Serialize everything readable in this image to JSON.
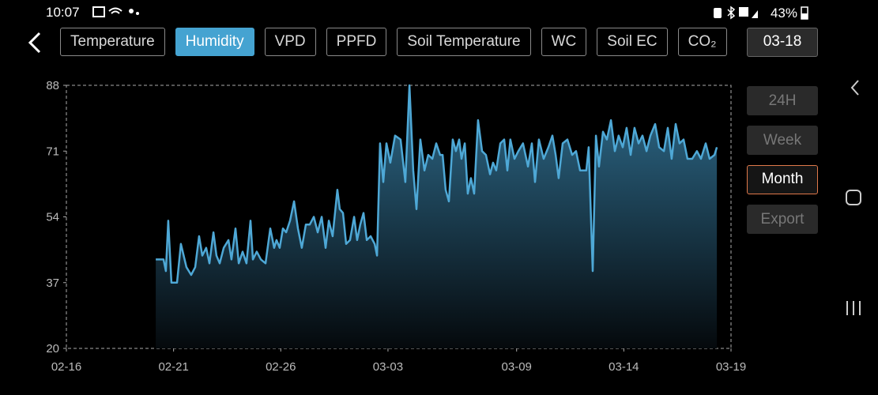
{
  "status_bar": {
    "time": "10:07",
    "battery": "43%"
  },
  "tabs": [
    {
      "label": "Temperature",
      "selected": false
    },
    {
      "label": "Humidity",
      "selected": true
    },
    {
      "label": "VPD",
      "selected": false
    },
    {
      "label": "PPFD",
      "selected": false
    },
    {
      "label": "Soil Temperature",
      "selected": false
    },
    {
      "label": "WC",
      "selected": false
    },
    {
      "label": "Soil EC",
      "selected": false
    },
    {
      "label": "CO₂",
      "selected": false
    }
  ],
  "date": "03-18",
  "ranges": [
    {
      "label": "24H",
      "selected": false
    },
    {
      "label": "Week",
      "selected": false
    },
    {
      "label": "Month",
      "selected": true
    },
    {
      "label": "Export",
      "selected": false
    }
  ],
  "chart_data": {
    "type": "area",
    "color": "#4ea8d6",
    "xlim": [
      0,
      31
    ],
    "ylim": [
      20,
      88
    ],
    "yticks": [
      20,
      37,
      54,
      71,
      88
    ],
    "xticks": [
      {
        "value": 0,
        "label": "02-16"
      },
      {
        "value": 5,
        "label": "02-21"
      },
      {
        "value": 10,
        "label": "02-26"
      },
      {
        "value": 15,
        "label": "03-03"
      },
      {
        "value": 21,
        "label": "03-09"
      },
      {
        "value": 26,
        "label": "03-14"
      },
      {
        "value": 31,
        "label": "03-19"
      }
    ],
    "x": [
      4.17,
      4.53,
      4.64,
      4.75,
      4.9,
      5.16,
      5.34,
      5.6,
      5.82,
      6.01,
      6.19,
      6.34,
      6.52,
      6.67,
      6.86,
      7.0,
      7.15,
      7.34,
      7.56,
      7.7,
      7.89,
      8.04,
      8.22,
      8.4,
      8.59,
      8.7,
      8.88,
      9.07,
      9.29,
      9.51,
      9.69,
      9.8,
      9.95,
      10.1,
      10.25,
      10.43,
      10.62,
      10.8,
      10.98,
      11.17,
      11.35,
      11.54,
      11.72,
      11.91,
      12.09,
      12.24,
      12.42,
      12.64,
      12.75,
      12.9,
      13.05,
      13.23,
      13.42,
      13.56,
      13.71,
      13.86,
      14.01,
      14.19,
      14.38,
      14.49,
      14.63,
      14.78,
      14.93,
      15.11,
      15.33,
      15.59,
      15.81,
      16.0,
      16.18,
      16.33,
      16.51,
      16.7,
      16.88,
      17.07,
      17.25,
      17.43,
      17.55,
      17.69,
      17.84,
      18.02,
      18.17,
      18.32,
      18.43,
      18.58,
      18.72,
      18.87,
      19.02,
      19.2,
      19.39,
      19.57,
      19.76,
      19.9,
      20.05,
      20.24,
      20.42,
      20.57,
      20.71,
      20.9,
      21.08,
      21.3,
      21.53,
      21.71,
      21.86,
      22.04,
      22.26,
      22.48,
      22.67,
      22.82,
      22.96,
      23.15,
      23.37,
      23.59,
      23.77,
      23.96,
      24.25,
      24.36,
      24.55,
      24.7,
      24.84,
      25.03,
      25.21,
      25.4,
      25.58,
      25.76,
      25.95,
      26.13,
      26.32,
      26.5,
      26.69,
      26.87,
      27.06,
      27.24,
      27.46,
      27.65,
      27.87,
      28.05,
      28.23,
      28.42,
      28.6,
      28.79,
      28.97,
      29.19,
      29.41,
      29.6,
      29.82,
      30.0,
      30.23,
      30.34
    ],
    "values": [
      43,
      43,
      40,
      53,
      37,
      37,
      47,
      41,
      39,
      41,
      49,
      44,
      46,
      42,
      50,
      44,
      42,
      46,
      48,
      43,
      51,
      42,
      45,
      42,
      53,
      43,
      45,
      43,
      42,
      51,
      46,
      48,
      46,
      51,
      50,
      53,
      58,
      51,
      46,
      52,
      52,
      54,
      50,
      54,
      46,
      53,
      49,
      61,
      56,
      55,
      47,
      48,
      54,
      48,
      52,
      55,
      48,
      49,
      47,
      44,
      73,
      63,
      73,
      68,
      75,
      74,
      63,
      88,
      66,
      56,
      74,
      66,
      70,
      69,
      73,
      70,
      70,
      61,
      58,
      74,
      71,
      74,
      69,
      73,
      60,
      64,
      60,
      79,
      71,
      70,
      65,
      68,
      66,
      73,
      74,
      66,
      74,
      69,
      71,
      73,
      67,
      73,
      63,
      74,
      69,
      72,
      75,
      70,
      64,
      73,
      74,
      70,
      71,
      66,
      66,
      72,
      40,
      75,
      67,
      76,
      74,
      79,
      71,
      75,
      72,
      77,
      70,
      77,
      73,
      75,
      71,
      75,
      78,
      72,
      71,
      77,
      69,
      78,
      73,
      74,
      69,
      69,
      71,
      69,
      73,
      69,
      70,
      72
    ]
  }
}
